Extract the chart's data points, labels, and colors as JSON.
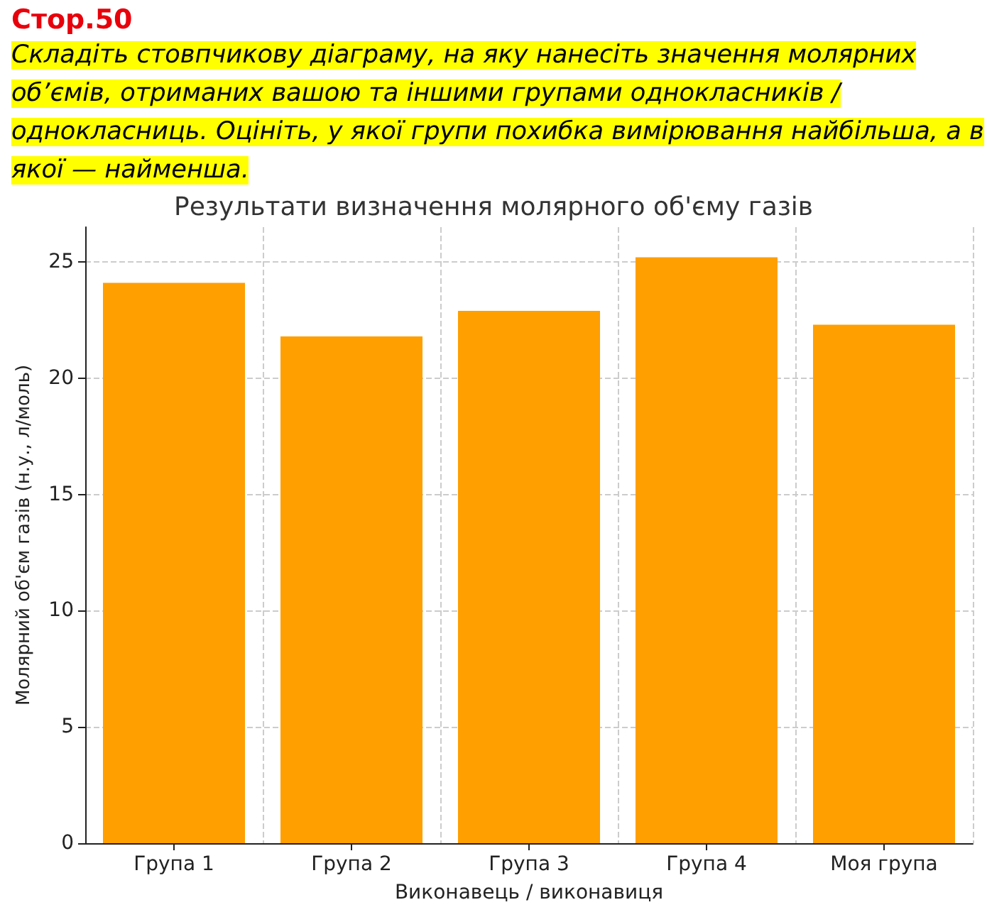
{
  "chart_data": {
    "type": "bar",
    "title": "Результати визначення молярного об'єму газів",
    "xlabel": "Виконавець / виконавиця",
    "ylabel": "Молярний об'єм газів (н.у., л/моль)",
    "annotations": [
      "Стор.50",
      "Складіть стовпчикову діаграму, на яку нанесіть значення молярних об’ємів, отриманих вашою та іншими групами однокласників / однокласниць. Оцініть, у якої групи похибка вимірювання найбільша, а в якої — найменша."
    ],
    "categories": [
      "Група 1",
      "Група 2",
      "Група 3",
      "Група 4",
      "Моя група"
    ],
    "values": [
      24.1,
      21.8,
      22.9,
      25.2,
      22.3
    ],
    "color": "#ff9f00",
    "ylim": [
      0,
      26.5
    ],
    "yticks": [
      0,
      5,
      10,
      15,
      20,
      25
    ],
    "grid": true
  }
}
